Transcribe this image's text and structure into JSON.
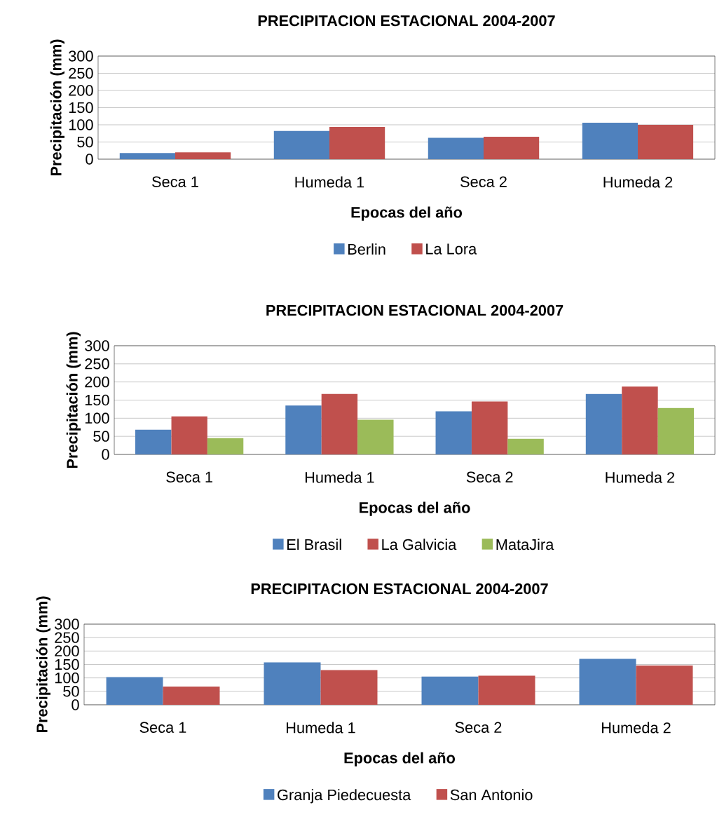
{
  "chart_data": [
    {
      "type": "bar",
      "title": "PRECIPITACION ESTACIONAL 2004-2007",
      "xlabel": "Epocas del año",
      "ylabel": "Precipitación (mm)",
      "categories": [
        "Seca 1",
        "Humeda 1",
        "Seca 2",
        "Humeda 2"
      ],
      "series": [
        {
          "name": "Berlin",
          "color": "#4f81bd",
          "values": [
            18,
            82,
            62,
            106
          ]
        },
        {
          "name": "La Lora",
          "color": "#c0504d",
          "values": [
            20,
            94,
            65,
            100
          ]
        }
      ],
      "ylim": [
        0,
        300
      ],
      "yticks": [
        0,
        50,
        100,
        150,
        200,
        250,
        300
      ],
      "grid": "y",
      "legend": "bottom"
    },
    {
      "type": "bar",
      "title": "PRECIPITACION ESTACIONAL 2004-2007",
      "xlabel": "Epocas del año",
      "ylabel": "Precipitación (mm)",
      "categories": [
        "Seca 1",
        "Humeda 1",
        "Seca 2",
        "Humeda 2"
      ],
      "series": [
        {
          "name": "El Brasil",
          "color": "#4f81bd",
          "values": [
            68,
            135,
            119,
            167
          ]
        },
        {
          "name": "La Galvicia",
          "color": "#c0504d",
          "values": [
            105,
            167,
            146,
            187
          ]
        },
        {
          "name": "MataJira",
          "color": "#9bbb59",
          "values": [
            45,
            96,
            43,
            128
          ]
        }
      ],
      "ylim": [
        0,
        300
      ],
      "yticks": [
        0,
        50,
        100,
        150,
        200,
        250,
        300
      ],
      "grid": "y",
      "legend": "bottom"
    },
    {
      "type": "bar",
      "title": "PRECIPITACION ESTACIONAL 2004-2007",
      "xlabel": "Epocas del año",
      "ylabel": "Precipitación (mm)",
      "categories": [
        "Seca 1",
        "Humeda 1",
        "Seca 2",
        "Humeda 2"
      ],
      "series": [
        {
          "name": "Granja Piedecuesta",
          "color": "#4f81bd",
          "values": [
            103,
            158,
            105,
            171
          ]
        },
        {
          "name": "San Antonio",
          "color": "#c0504d",
          "values": [
            68,
            129,
            108,
            146
          ]
        }
      ],
      "ylim": [
        0,
        300
      ],
      "yticks": [
        0,
        50,
        100,
        150,
        200,
        250,
        300
      ],
      "grid": "y",
      "legend": "bottom"
    }
  ]
}
